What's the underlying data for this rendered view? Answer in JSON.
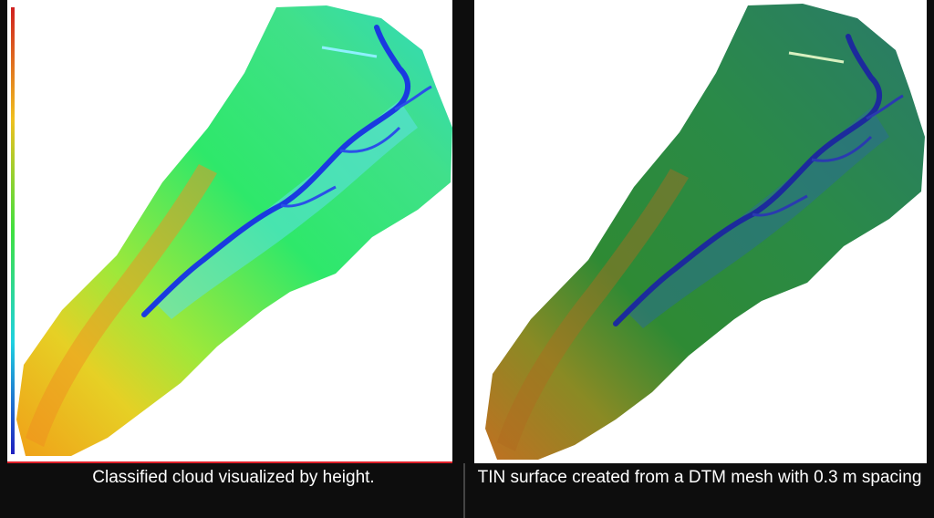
{
  "captions": {
    "left": "Classified cloud visualized by height.",
    "right": "TIN surface created from a DTM mesh with 0.3 m spacing"
  },
  "images": {
    "left": {
      "kind": "height-colored point cloud",
      "palette": [
        "#1a2bd8",
        "#19c8e6",
        "#2ee84a",
        "#c8f02a",
        "#f08a1a"
      ]
    },
    "right": {
      "kind": "shaded TIN surface",
      "palette": [
        "#1a2a9a",
        "#2a7a6a",
        "#2a8a3a",
        "#6a8a2a",
        "#b86a2a"
      ]
    }
  },
  "colors": {
    "background": "#0d0d0d",
    "accent_line": "#e0202a"
  }
}
